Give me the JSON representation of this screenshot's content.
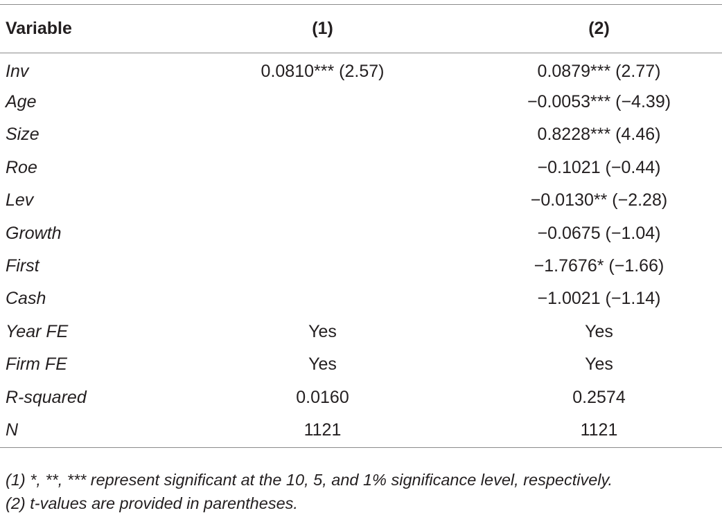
{
  "table": {
    "headers": [
      "Variable",
      "(1)",
      "(2)"
    ],
    "rows": [
      {
        "variable": "Inv",
        "col1": "0.0810*** (2.57)",
        "col2": "0.0879*** (2.77)"
      },
      {
        "variable": "Age",
        "col1": "",
        "col2": "−0.0053*** (−4.39)"
      },
      {
        "variable": "Size",
        "col1": "",
        "col2": "0.8228*** (4.46)"
      },
      {
        "variable": "Roe",
        "col1": "",
        "col2": "−0.1021 (−0.44)"
      },
      {
        "variable": "Lev",
        "col1": "",
        "col2": "−0.0130** (−2.28)"
      },
      {
        "variable": "Growth",
        "col1": "",
        "col2": "−0.0675 (−1.04)"
      },
      {
        "variable": "First",
        "col1": "",
        "col2": "−1.7676* (−1.66)"
      },
      {
        "variable": "Cash",
        "col1": "",
        "col2": "−1.0021 (−1.14)"
      },
      {
        "variable": "Year FE",
        "col1": "Yes",
        "col2": "Yes"
      },
      {
        "variable": "Firm FE",
        "col1": "Yes",
        "col2": "Yes"
      },
      {
        "variable": "R-squared",
        "col1": "0.0160",
        "col2": "0.2574"
      },
      {
        "variable": "N",
        "col1": "1121",
        "col2": "1121"
      }
    ]
  },
  "notes": [
    "(1) *, **, *** represent significant at the 10, 5, and 1% significance level, respectively.",
    "(2) t-values are provided in parentheses."
  ]
}
